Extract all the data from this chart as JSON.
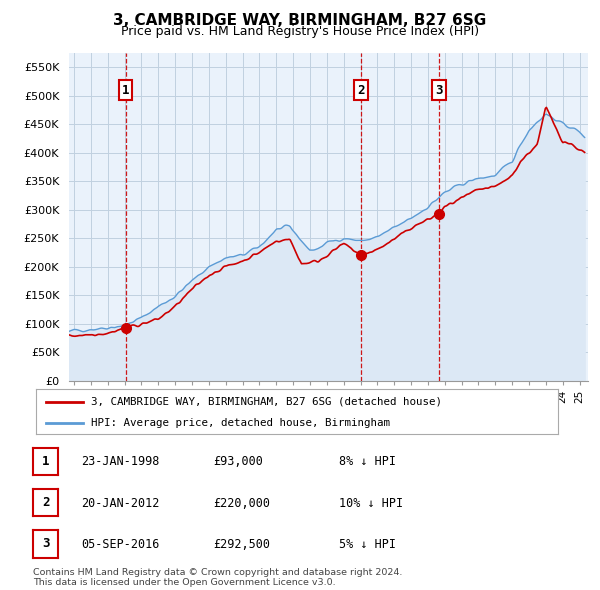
{
  "title": "3, CAMBRIDGE WAY, BIRMINGHAM, B27 6SG",
  "subtitle": "Price paid vs. HM Land Registry's House Price Index (HPI)",
  "ylabel_ticks": [
    "£0",
    "£50K",
    "£100K",
    "£150K",
    "£200K",
    "£250K",
    "£300K",
    "£350K",
    "£400K",
    "£450K",
    "£500K",
    "£550K"
  ],
  "y_values": [
    0,
    50000,
    100000,
    150000,
    200000,
    250000,
    300000,
    350000,
    400000,
    450000,
    500000,
    550000
  ],
  "ylim": [
    0,
    575000
  ],
  "xlim_start": 1994.7,
  "xlim_end": 2025.5,
  "transactions": [
    {
      "date": 1998.06,
      "price": 93000,
      "label": "1"
    },
    {
      "date": 2012.05,
      "price": 220000,
      "label": "2"
    },
    {
      "date": 2016.67,
      "price": 292500,
      "label": "3"
    }
  ],
  "hpi_line_color": "#5b9bd5",
  "hpi_fill_color": "#dce8f5",
  "price_color": "#cc0000",
  "vline_color": "#cc0000",
  "chart_bg_color": "#eaf2fb",
  "legend_entries": [
    "3, CAMBRIDGE WAY, BIRMINGHAM, B27 6SG (detached house)",
    "HPI: Average price, detached house, Birmingham"
  ],
  "table_rows": [
    {
      "num": "1",
      "date": "23-JAN-1998",
      "price": "£93,000",
      "hpi": "8% ↓ HPI"
    },
    {
      "num": "2",
      "date": "20-JAN-2012",
      "price": "£220,000",
      "hpi": "10% ↓ HPI"
    },
    {
      "num": "3",
      "date": "05-SEP-2016",
      "price": "£292,500",
      "hpi": "5% ↓ HPI"
    }
  ],
  "footer": "Contains HM Land Registry data © Crown copyright and database right 2024.\nThis data is licensed under the Open Government Licence v3.0.",
  "background_color": "#ffffff",
  "grid_color": "#c0d0e0"
}
